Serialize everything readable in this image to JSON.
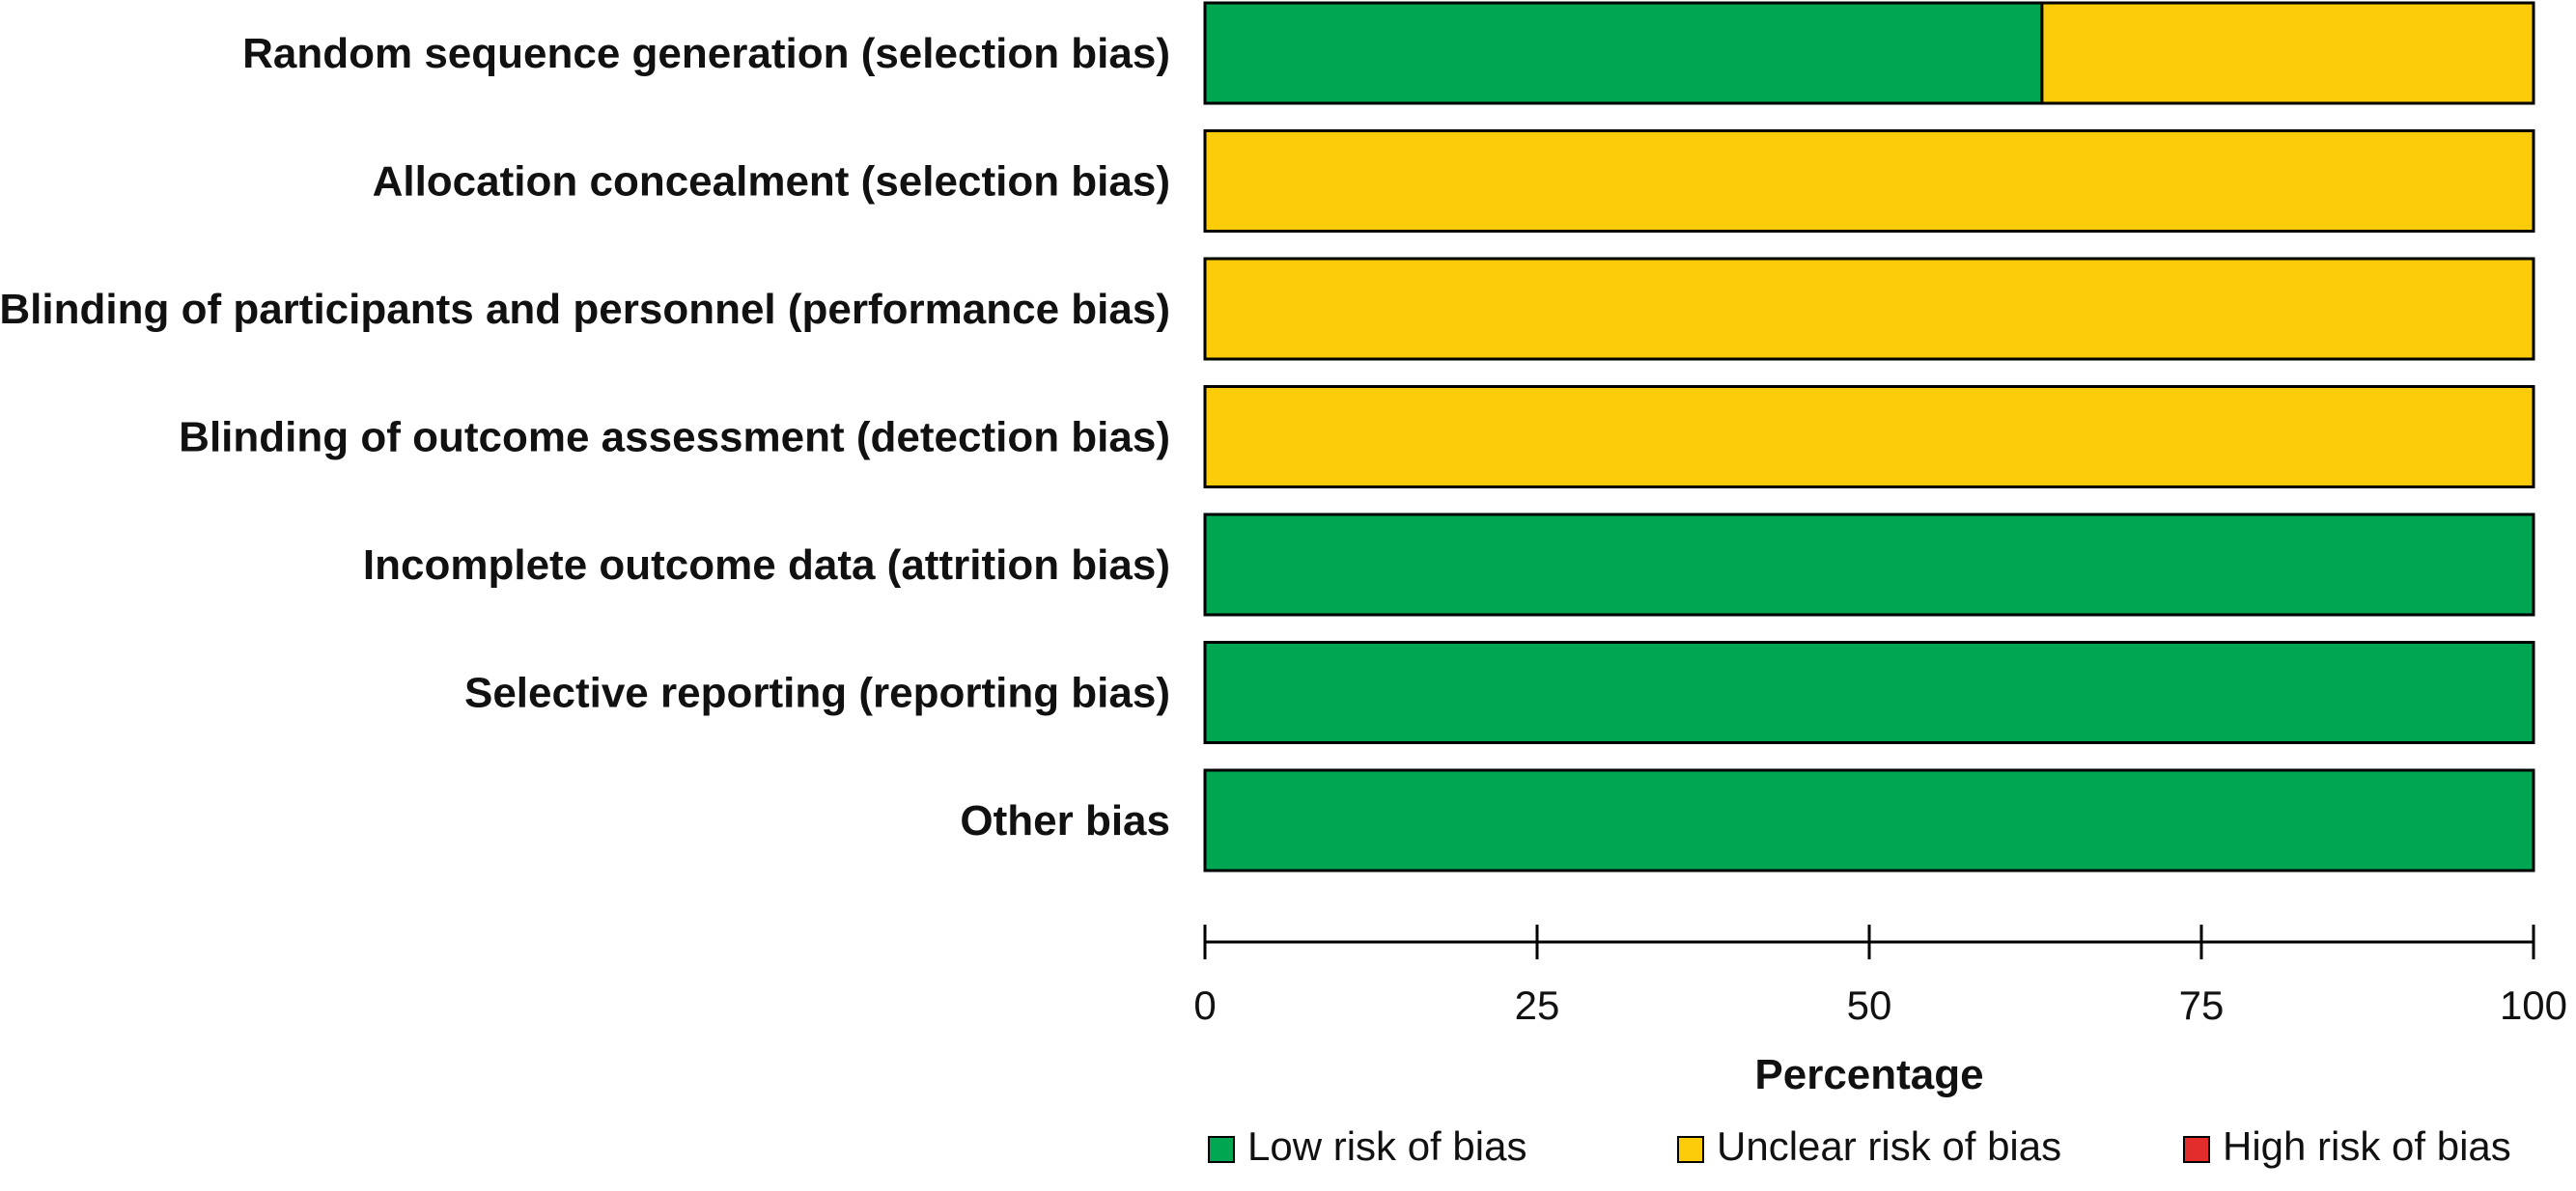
{
  "chart_data": {
    "type": "bar",
    "stacked": true,
    "orientation": "horizontal",
    "categories": [
      "Random sequence generation (selection bias)",
      "Allocation concealment (selection bias)",
      "Blinding of participants and personnel (performance bias)",
      "Blinding of outcome assessment (detection bias)",
      "Incomplete outcome data (attrition bias)",
      "Selective reporting (reporting bias)",
      "Other bias"
    ],
    "series": [
      {
        "name": "Low risk of bias",
        "color": "#00a651",
        "values": [
          63,
          0,
          0,
          0,
          100,
          100,
          100
        ]
      },
      {
        "name": "Unclear risk of bias",
        "color": "#fccb0a",
        "values": [
          37,
          100,
          100,
          100,
          0,
          0,
          0
        ]
      },
      {
        "name": "High risk of bias",
        "color": "#e32d2d",
        "values": [
          0,
          0,
          0,
          0,
          0,
          0,
          0
        ]
      }
    ],
    "xlabel": "Percentage",
    "xticks": [
      "0",
      "25",
      "50",
      "75",
      "100"
    ],
    "xlim": [
      0,
      100
    ],
    "grid": false,
    "legend_position": "bottom"
  }
}
